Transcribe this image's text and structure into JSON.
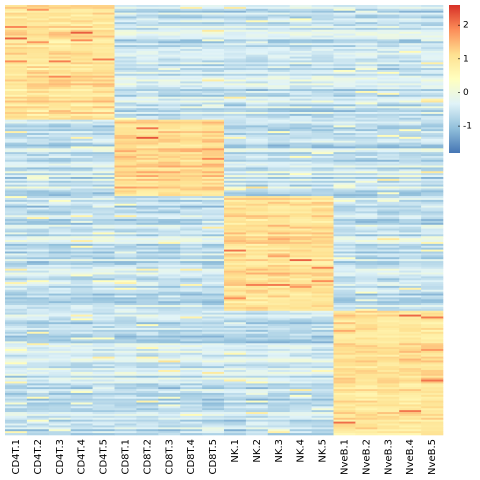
{
  "chart_data": {
    "type": "heatmap",
    "title": "",
    "xlabel": "",
    "ylabel": "",
    "columns": [
      "CD4T.1",
      "CD4T.2",
      "CD4T.3",
      "CD4T.4",
      "CD4T.5",
      "CD8T.1",
      "CD8T.2",
      "CD8T.3",
      "CD8T.4",
      "CD8T.5",
      "NK.1",
      "NK.2",
      "NK.3",
      "NK.4",
      "NK.5",
      "NveB.1",
      "NveB.2",
      "NveB.3",
      "NveB.4",
      "NveB.5"
    ],
    "column_groups": [
      {
        "name": "CD4T",
        "columns": [
          0,
          1,
          2,
          3,
          4
        ]
      },
      {
        "name": "CD8T",
        "columns": [
          5,
          6,
          7,
          8,
          9
        ]
      },
      {
        "name": "NK",
        "columns": [
          10,
          11,
          12,
          13,
          14
        ]
      },
      {
        "name": "NveB",
        "columns": [
          15,
          16,
          17,
          18,
          19
        ]
      }
    ],
    "row_clusters": [
      {
        "rows": 60,
        "high_group": "CD4T",
        "high_level": 1.0
      },
      {
        "rows": 40,
        "high_group": "CD8T",
        "high_level": 1.2
      },
      {
        "rows": 60,
        "high_group": "NK",
        "high_level": 1.1
      },
      {
        "rows": 65,
        "high_group": "NveB",
        "high_level": 1.0
      }
    ],
    "typical_background_value": -0.55,
    "value_range": [
      -1.8,
      2.6
    ],
    "colorbar": {
      "ticks": [
        -1,
        0,
        1,
        2
      ],
      "tick_labels": [
        "-1",
        "0",
        "1",
        "2"
      ],
      "colors": [
        "#4575b4",
        "#91bfdb",
        "#e0f3f8",
        "#ffffbf",
        "#fee090",
        "#fc8d59",
        "#d73027"
      ]
    }
  }
}
